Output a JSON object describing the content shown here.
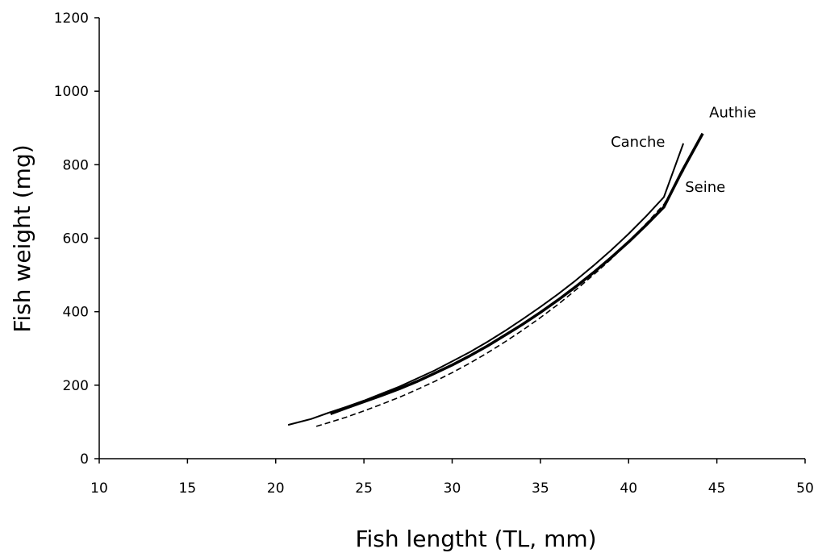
{
  "chart_data": {
    "type": "line",
    "title": "",
    "xlabel": "Fish lengtht (TL, mm)",
    "ylabel": "Fish weight (mg)",
    "xlim": [
      10,
      50
    ],
    "ylim": [
      0,
      1200
    ],
    "xticks": [
      10,
      15,
      20,
      25,
      30,
      35,
      40,
      45,
      50
    ],
    "yticks": [
      0,
      200,
      400,
      600,
      800,
      1000,
      1200
    ],
    "grid": false,
    "legend": "none",
    "series": [
      {
        "name": "Canche",
        "style": "thin-solid",
        "x": [
          20.7,
          22,
          23,
          24,
          25,
          26,
          27,
          28,
          29,
          30,
          31,
          32,
          33,
          34,
          35,
          36,
          37,
          38,
          39,
          40,
          41,
          42,
          43.1
        ],
        "y": [
          92,
          108,
          125,
          141,
          158,
          177,
          196,
          218,
          240,
          265,
          290,
          318,
          348,
          380,
          413,
          448,
          485,
          525,
          567,
          612,
          660,
          712,
          858
        ]
      },
      {
        "name": "Authie",
        "style": "thick-solid",
        "x": [
          23.1,
          24,
          25,
          26,
          27,
          28,
          29,
          30,
          31,
          32,
          33,
          34,
          35,
          36,
          37,
          38,
          39,
          40,
          41,
          42,
          43,
          44.2
        ],
        "y": [
          122,
          138,
          155,
          172,
          190,
          210,
          232,
          255,
          280,
          307,
          336,
          366,
          398,
          432,
          468,
          506,
          547,
          590,
          636,
          685,
          780,
          885
        ]
      },
      {
        "name": "Seine",
        "style": "dashed",
        "x": [
          22.3,
          23,
          24,
          25,
          26,
          27,
          28,
          29,
          30,
          31,
          32,
          33,
          34,
          35,
          36,
          37,
          38,
          39,
          40,
          41,
          42,
          43.2
        ],
        "y": [
          88,
          98,
          113,
          130,
          148,
          167,
          188,
          210,
          234,
          260,
          288,
          318,
          350,
          384,
          420,
          459,
          500,
          543,
          590,
          640,
          692,
          792
        ]
      }
    ]
  }
}
